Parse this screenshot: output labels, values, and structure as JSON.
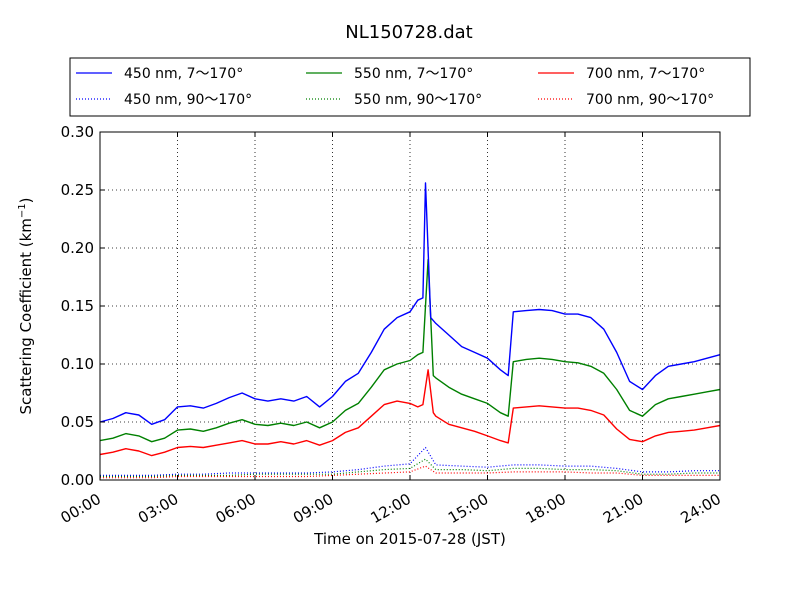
{
  "chart_data": {
    "type": "line",
    "title": "NL150728.dat",
    "xlabel": "Time on 2015-07-28 (JST)",
    "ylabel_main": "Scattering Coefficient (km",
    "ylabel_sup": "−1",
    "ylabel_close": ")",
    "x_ticks": [
      "00:00",
      "03:00",
      "06:00",
      "09:00",
      "12:00",
      "15:00",
      "18:00",
      "21:00",
      "24:00"
    ],
    "x_tick_hours": [
      0,
      3,
      6,
      9,
      12,
      15,
      18,
      21,
      24
    ],
    "xlim_hours": [
      0,
      24
    ],
    "y_ticks": [
      "0.00",
      "0.05",
      "0.10",
      "0.15",
      "0.20",
      "0.25",
      "0.30"
    ],
    "y_tick_values": [
      0.0,
      0.05,
      0.1,
      0.15,
      0.2,
      0.25,
      0.3
    ],
    "ylim": [
      0.0,
      0.3
    ],
    "grid": true,
    "legend_placement": "top, above plot, 3 columns",
    "series": [
      {
        "name": "450 nm, 7～170°",
        "color": "#0000ff",
        "style": "solid",
        "x_hours": [
          0,
          0.5,
          1,
          1.5,
          2,
          2.5,
          3,
          3.5,
          4,
          4.5,
          5,
          5.5,
          6,
          6.5,
          7,
          7.5,
          8,
          8.5,
          9,
          9.5,
          10,
          10.5,
          11,
          11.5,
          12,
          12.3,
          12.5,
          12.6,
          12.8,
          13,
          13.5,
          14,
          14.5,
          15,
          15.5,
          15.8,
          16,
          16.5,
          17,
          17.5,
          18,
          18.5,
          19,
          19.5,
          20,
          20.5,
          21,
          21.5,
          22,
          22.5,
          23,
          23.5,
          24
        ],
        "values": [
          0.05,
          0.053,
          0.058,
          0.056,
          0.048,
          0.052,
          0.063,
          0.064,
          0.062,
          0.066,
          0.071,
          0.075,
          0.07,
          0.068,
          0.07,
          0.068,
          0.072,
          0.063,
          0.072,
          0.085,
          0.092,
          0.11,
          0.13,
          0.14,
          0.145,
          0.155,
          0.157,
          0.256,
          0.14,
          0.135,
          0.125,
          0.115,
          0.11,
          0.105,
          0.095,
          0.09,
          0.145,
          0.146,
          0.147,
          0.146,
          0.143,
          0.143,
          0.14,
          0.13,
          0.11,
          0.085,
          0.078,
          0.09,
          0.098,
          0.1,
          0.102,
          0.105,
          0.108
        ]
      },
      {
        "name": "550 nm, 7～170°",
        "color": "#008000",
        "style": "solid",
        "x_hours": [
          0,
          0.5,
          1,
          1.5,
          2,
          2.5,
          3,
          3.5,
          4,
          4.5,
          5,
          5.5,
          6,
          6.5,
          7,
          7.5,
          8,
          8.5,
          9,
          9.5,
          10,
          10.5,
          11,
          11.5,
          12,
          12.3,
          12.5,
          12.7,
          12.9,
          13,
          13.5,
          14,
          14.5,
          15,
          15.5,
          15.8,
          16,
          16.5,
          17,
          17.5,
          18,
          18.5,
          19,
          19.5,
          20,
          20.5,
          21,
          21.5,
          22,
          22.5,
          23,
          23.5,
          24
        ],
        "values": [
          0.034,
          0.036,
          0.04,
          0.038,
          0.033,
          0.036,
          0.043,
          0.044,
          0.042,
          0.045,
          0.049,
          0.052,
          0.048,
          0.047,
          0.049,
          0.047,
          0.05,
          0.045,
          0.05,
          0.06,
          0.066,
          0.08,
          0.095,
          0.1,
          0.103,
          0.108,
          0.11,
          0.19,
          0.09,
          0.088,
          0.08,
          0.074,
          0.07,
          0.066,
          0.058,
          0.055,
          0.102,
          0.104,
          0.105,
          0.104,
          0.102,
          0.101,
          0.098,
          0.092,
          0.078,
          0.06,
          0.055,
          0.065,
          0.07,
          0.072,
          0.074,
          0.076,
          0.078
        ]
      },
      {
        "name": "700 nm, 7～170°",
        "color": "#ff0000",
        "style": "solid",
        "x_hours": [
          0,
          0.5,
          1,
          1.5,
          2,
          2.5,
          3,
          3.5,
          4,
          4.5,
          5,
          5.5,
          6,
          6.5,
          7,
          7.5,
          8,
          8.5,
          9,
          9.5,
          10,
          10.5,
          11,
          11.5,
          12,
          12.3,
          12.5,
          12.7,
          12.9,
          13,
          13.5,
          14,
          14.5,
          15,
          15.5,
          15.8,
          16,
          16.5,
          17,
          17.5,
          18,
          18.5,
          19,
          19.5,
          20,
          20.5,
          21,
          21.5,
          22,
          22.5,
          23,
          23.5,
          24
        ],
        "values": [
          0.022,
          0.024,
          0.027,
          0.025,
          0.021,
          0.024,
          0.028,
          0.029,
          0.028,
          0.03,
          0.032,
          0.034,
          0.031,
          0.031,
          0.033,
          0.031,
          0.034,
          0.03,
          0.034,
          0.041,
          0.045,
          0.055,
          0.065,
          0.068,
          0.066,
          0.063,
          0.065,
          0.095,
          0.058,
          0.055,
          0.048,
          0.045,
          0.042,
          0.038,
          0.034,
          0.032,
          0.062,
          0.063,
          0.064,
          0.063,
          0.062,
          0.062,
          0.06,
          0.056,
          0.044,
          0.035,
          0.033,
          0.038,
          0.041,
          0.042,
          0.043,
          0.045,
          0.047
        ]
      },
      {
        "name": "450 nm, 90～170°",
        "color": "#0000ff",
        "style": "dotted",
        "x_hours": [
          0,
          1,
          2,
          3,
          4,
          5,
          6,
          7,
          8,
          9,
          10,
          11,
          12,
          12.6,
          13,
          14,
          15,
          16,
          17,
          18,
          19,
          20,
          21,
          22,
          23,
          24
        ],
        "values": [
          0.004,
          0.004,
          0.004,
          0.005,
          0.005,
          0.006,
          0.006,
          0.006,
          0.006,
          0.007,
          0.009,
          0.012,
          0.014,
          0.028,
          0.013,
          0.012,
          0.011,
          0.013,
          0.013,
          0.012,
          0.012,
          0.01,
          0.007,
          0.007,
          0.008,
          0.008
        ]
      },
      {
        "name": "550 nm, 90～170°",
        "color": "#008000",
        "style": "dotted",
        "x_hours": [
          0,
          1,
          2,
          3,
          4,
          5,
          6,
          7,
          8,
          9,
          10,
          11,
          12,
          12.6,
          13,
          14,
          15,
          16,
          17,
          18,
          19,
          20,
          21,
          22,
          23,
          24
        ],
        "values": [
          0.003,
          0.003,
          0.003,
          0.004,
          0.004,
          0.004,
          0.005,
          0.005,
          0.005,
          0.005,
          0.007,
          0.009,
          0.01,
          0.018,
          0.009,
          0.009,
          0.008,
          0.01,
          0.01,
          0.009,
          0.009,
          0.008,
          0.005,
          0.005,
          0.006,
          0.006
        ]
      },
      {
        "name": "700 nm, 90～170°",
        "color": "#ff0000",
        "style": "dotted",
        "x_hours": [
          0,
          1,
          2,
          3,
          4,
          5,
          6,
          7,
          8,
          9,
          10,
          11,
          12,
          12.6,
          13,
          14,
          15,
          16,
          17,
          18,
          19,
          20,
          21,
          22,
          23,
          24
        ],
        "values": [
          0.002,
          0.002,
          0.002,
          0.003,
          0.003,
          0.003,
          0.003,
          0.003,
          0.003,
          0.004,
          0.005,
          0.006,
          0.007,
          0.012,
          0.006,
          0.006,
          0.006,
          0.007,
          0.007,
          0.007,
          0.006,
          0.006,
          0.004,
          0.004,
          0.004,
          0.004
        ]
      }
    ]
  }
}
